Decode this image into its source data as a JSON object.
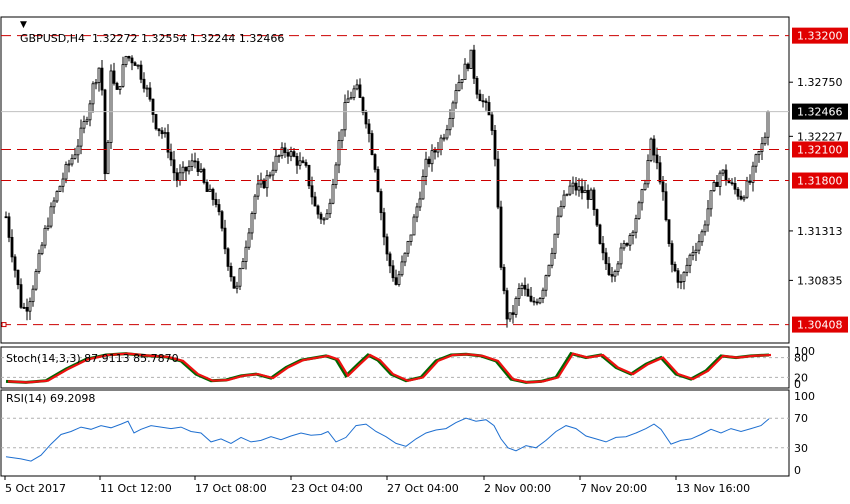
{
  "header": {
    "symbol_line": "GBPUSD,H4  1.32272 1.32554 1.32244 1.32466",
    "menu_glyph": "▼"
  },
  "colors": {
    "candle": "#000000",
    "level_line": "#cc0000",
    "level_box": "#e00000",
    "price_box": "#000000",
    "stoch_main": "#006600",
    "stoch_signal": "#ee1111",
    "rsi": "#1e6fd0",
    "grid": "#b0b0b0",
    "bid_line": "#c0c0c0"
  },
  "chart_data": [
    {
      "type": "candlestick",
      "title": "GBPUSD,H4",
      "ohlc_last": {
        "open": 1.32272,
        "high": 1.32554,
        "low": 1.32244,
        "close": 1.32466
      },
      "y_ticks": [
        "1.32750",
        "1.32227",
        "1.31313",
        "1.30835"
      ],
      "ylim": [
        1.3023,
        1.3338
      ],
      "x_ticks": [
        "5 Oct 2017",
        "11 Oct 12:00",
        "17 Oct 08:00",
        "23 Oct 04:00",
        "27 Oct 04:00",
        "2 Nov 00:00",
        "7 Nov 20:00",
        "13 Nov 16:00"
      ],
      "levels": [
        "1.33200",
        "1.32100",
        "1.31800",
        "1.30408"
      ],
      "current_price": "1.32466",
      "close_path": [
        [
          0,
          1.3145
        ],
        [
          8,
          1.31
        ],
        [
          16,
          1.3055
        ],
        [
          22,
          1.306
        ],
        [
          30,
          1.309
        ],
        [
          40,
          1.3135
        ],
        [
          50,
          1.3165
        ],
        [
          60,
          1.319
        ],
        [
          70,
          1.321
        ],
        [
          80,
          1.324
        ],
        [
          88,
          1.3275
        ],
        [
          95,
          1.3295
        ],
        [
          100,
          1.316
        ],
        [
          105,
          1.329
        ],
        [
          110,
          1.326
        ],
        [
          120,
          1.33
        ],
        [
          130,
          1.3295
        ],
        [
          140,
          1.327
        ],
        [
          150,
          1.3235
        ],
        [
          160,
          1.322
        ],
        [
          170,
          1.318
        ],
        [
          180,
          1.319
        ],
        [
          190,
          1.32
        ],
        [
          200,
          1.317
        ],
        [
          210,
          1.316
        ],
        [
          220,
          1.311
        ],
        [
          230,
          1.307
        ],
        [
          240,
          1.312
        ],
        [
          250,
          1.317
        ],
        [
          260,
          1.318
        ],
        [
          270,
          1.32
        ],
        [
          280,
          1.321
        ],
        [
          290,
          1.32
        ],
        [
          300,
          1.319
        ],
        [
          310,
          1.315
        ],
        [
          320,
          1.314
        ],
        [
          330,
          1.32
        ],
        [
          340,
          1.3255
        ],
        [
          350,
          1.327
        ],
        [
          360,
          1.324
        ],
        [
          370,
          1.319
        ],
        [
          380,
          1.311
        ],
        [
          390,
          1.308
        ],
        [
          400,
          1.311
        ],
        [
          410,
          1.315
        ],
        [
          420,
          1.3195
        ],
        [
          430,
          1.321
        ],
        [
          440,
          1.323
        ],
        [
          450,
          1.327
        ],
        [
          460,
          1.329
        ],
        [
          465,
          1.33
        ],
        [
          470,
          1.327
        ],
        [
          480,
          1.325
        ],
        [
          487,
          1.323
        ],
        [
          495,
          1.31
        ],
        [
          500,
          1.305
        ],
        [
          505,
          1.3046
        ],
        [
          515,
          1.308
        ],
        [
          525,
          1.306
        ],
        [
          535,
          1.307
        ],
        [
          545,
          1.311
        ],
        [
          555,
          1.3155
        ],
        [
          565,
          1.3175
        ],
        [
          575,
          1.317
        ],
        [
          585,
          1.3165
        ],
        [
          595,
          1.311
        ],
        [
          605,
          1.309
        ],
        [
          615,
          1.311
        ],
        [
          625,
          1.313
        ],
        [
          635,
          1.316
        ],
        [
          645,
          1.3215
        ],
        [
          655,
          1.318
        ],
        [
          665,
          1.31
        ],
        [
          675,
          1.308
        ],
        [
          685,
          1.311
        ],
        [
          695,
          1.3125
        ],
        [
          705,
          1.3165
        ],
        [
          715,
          1.319
        ],
        [
          725,
          1.3175
        ],
        [
          735,
          1.3165
        ],
        [
          745,
          1.318
        ],
        [
          750,
          1.32
        ],
        [
          755,
          1.321
        ],
        [
          760,
          1.3227
        ],
        [
          763,
          1.32466
        ]
      ]
    },
    {
      "type": "line",
      "title": "Stoch(14,3,3)",
      "label": "Stoch(14,3,3) 87.9113 85.7870",
      "values": {
        "main": 87.9113,
        "signal": 85.787
      },
      "y_ticks": [
        "100",
        "80",
        "20",
        "0"
      ],
      "ylim": [
        0,
        100
      ],
      "path": [
        [
          0,
          8
        ],
        [
          20,
          5
        ],
        [
          40,
          10
        ],
        [
          60,
          45
        ],
        [
          80,
          75
        ],
        [
          100,
          88
        ],
        [
          120,
          92
        ],
        [
          140,
          86
        ],
        [
          160,
          82
        ],
        [
          175,
          70
        ],
        [
          190,
          30
        ],
        [
          205,
          10
        ],
        [
          220,
          12
        ],
        [
          235,
          25
        ],
        [
          250,
          30
        ],
        [
          265,
          18
        ],
        [
          280,
          50
        ],
        [
          295,
          72
        ],
        [
          310,
          80
        ],
        [
          320,
          85
        ],
        [
          330,
          75
        ],
        [
          340,
          25
        ],
        [
          352,
          60
        ],
        [
          362,
          88
        ],
        [
          372,
          72
        ],
        [
          385,
          30
        ],
        [
          400,
          10
        ],
        [
          415,
          20
        ],
        [
          430,
          70
        ],
        [
          445,
          88
        ],
        [
          460,
          90
        ],
        [
          475,
          85
        ],
        [
          490,
          70
        ],
        [
          505,
          15
        ],
        [
          520,
          5
        ],
        [
          535,
          8
        ],
        [
          550,
          20
        ],
        [
          565,
          92
        ],
        [
          580,
          80
        ],
        [
          595,
          88
        ],
        [
          610,
          50
        ],
        [
          625,
          30
        ],
        [
          640,
          60
        ],
        [
          655,
          80
        ],
        [
          670,
          30
        ],
        [
          685,
          15
        ],
        [
          700,
          40
        ],
        [
          715,
          85
        ],
        [
          730,
          80
        ],
        [
          745,
          85
        ],
        [
          763,
          88
        ]
      ]
    },
    {
      "type": "line",
      "title": "RSI(14)",
      "label": "RSI(14) 69.2098",
      "value": 69.2098,
      "y_ticks": [
        "100",
        "70",
        "30",
        "0"
      ],
      "ylim": [
        0,
        100
      ],
      "path": [
        [
          0,
          18
        ],
        [
          15,
          15
        ],
        [
          25,
          12
        ],
        [
          35,
          20
        ],
        [
          45,
          35
        ],
        [
          55,
          48
        ],
        [
          65,
          52
        ],
        [
          75,
          58
        ],
        [
          85,
          55
        ],
        [
          95,
          60
        ],
        [
          105,
          57
        ],
        [
          115,
          62
        ],
        [
          122,
          66
        ],
        [
          128,
          50
        ],
        [
          135,
          55
        ],
        [
          145,
          60
        ],
        [
          155,
          58
        ],
        [
          165,
          56
        ],
        [
          175,
          58
        ],
        [
          185,
          52
        ],
        [
          195,
          50
        ],
        [
          205,
          38
        ],
        [
          215,
          42
        ],
        [
          225,
          36
        ],
        [
          235,
          44
        ],
        [
          245,
          38
        ],
        [
          255,
          40
        ],
        [
          265,
          45
        ],
        [
          275,
          41
        ],
        [
          285,
          46
        ],
        [
          295,
          50
        ],
        [
          305,
          47
        ],
        [
          315,
          48
        ],
        [
          322,
          52
        ],
        [
          330,
          38
        ],
        [
          340,
          44
        ],
        [
          350,
          60
        ],
        [
          360,
          62
        ],
        [
          370,
          52
        ],
        [
          380,
          45
        ],
        [
          390,
          36
        ],
        [
          400,
          32
        ],
        [
          410,
          42
        ],
        [
          420,
          50
        ],
        [
          430,
          54
        ],
        [
          440,
          56
        ],
        [
          450,
          64
        ],
        [
          460,
          70
        ],
        [
          470,
          66
        ],
        [
          480,
          68
        ],
        [
          488,
          60
        ],
        [
          495,
          42
        ],
        [
          502,
          30
        ],
        [
          510,
          26
        ],
        [
          520,
          33
        ],
        [
          530,
          30
        ],
        [
          540,
          40
        ],
        [
          550,
          52
        ],
        [
          560,
          60
        ],
        [
          570,
          56
        ],
        [
          580,
          46
        ],
        [
          590,
          42
        ],
        [
          600,
          38
        ],
        [
          610,
          44
        ],
        [
          620,
          45
        ],
        [
          630,
          50
        ],
        [
          640,
          56
        ],
        [
          648,
          62
        ],
        [
          655,
          55
        ],
        [
          665,
          35
        ],
        [
          675,
          40
        ],
        [
          685,
          42
        ],
        [
          695,
          48
        ],
        [
          705,
          55
        ],
        [
          715,
          50
        ],
        [
          725,
          56
        ],
        [
          735,
          52
        ],
        [
          745,
          56
        ],
        [
          755,
          60
        ],
        [
          763,
          69.2
        ]
      ]
    }
  ]
}
